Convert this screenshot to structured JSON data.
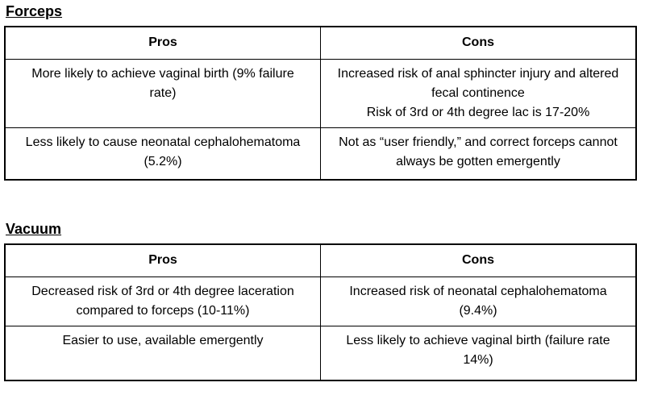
{
  "page": {
    "background_color": "#ffffff",
    "text_color": "#000000",
    "border_color": "#000000"
  },
  "sections": [
    {
      "title": "Forceps",
      "headers": [
        "Pros",
        "Cons"
      ],
      "rows": [
        {
          "pros": "More likely to achieve vaginal birth (9% failure rate)",
          "cons": "Increased risk of anal sphincter injury and altered fecal continence\nRisk of 3rd or 4th degree lac is 17-20%"
        },
        {
          "pros": "Less likely to cause neonatal cephalohematoma (5.2%)",
          "cons": "Not as “user friendly,” and correct forceps cannot always be gotten emergently"
        }
      ]
    },
    {
      "title": "Vacuum",
      "headers": [
        "Pros",
        "Cons"
      ],
      "rows": [
        {
          "pros": "Decreased risk of 3rd or 4th degree laceration compared to forceps (10-11%)",
          "cons": "Increased risk of neonatal cephalohematoma (9.4%)"
        },
        {
          "pros": "Easier to use, available emergently",
          "cons": "Less likely to achieve vaginal birth (failure rate 14%)"
        }
      ]
    }
  ]
}
